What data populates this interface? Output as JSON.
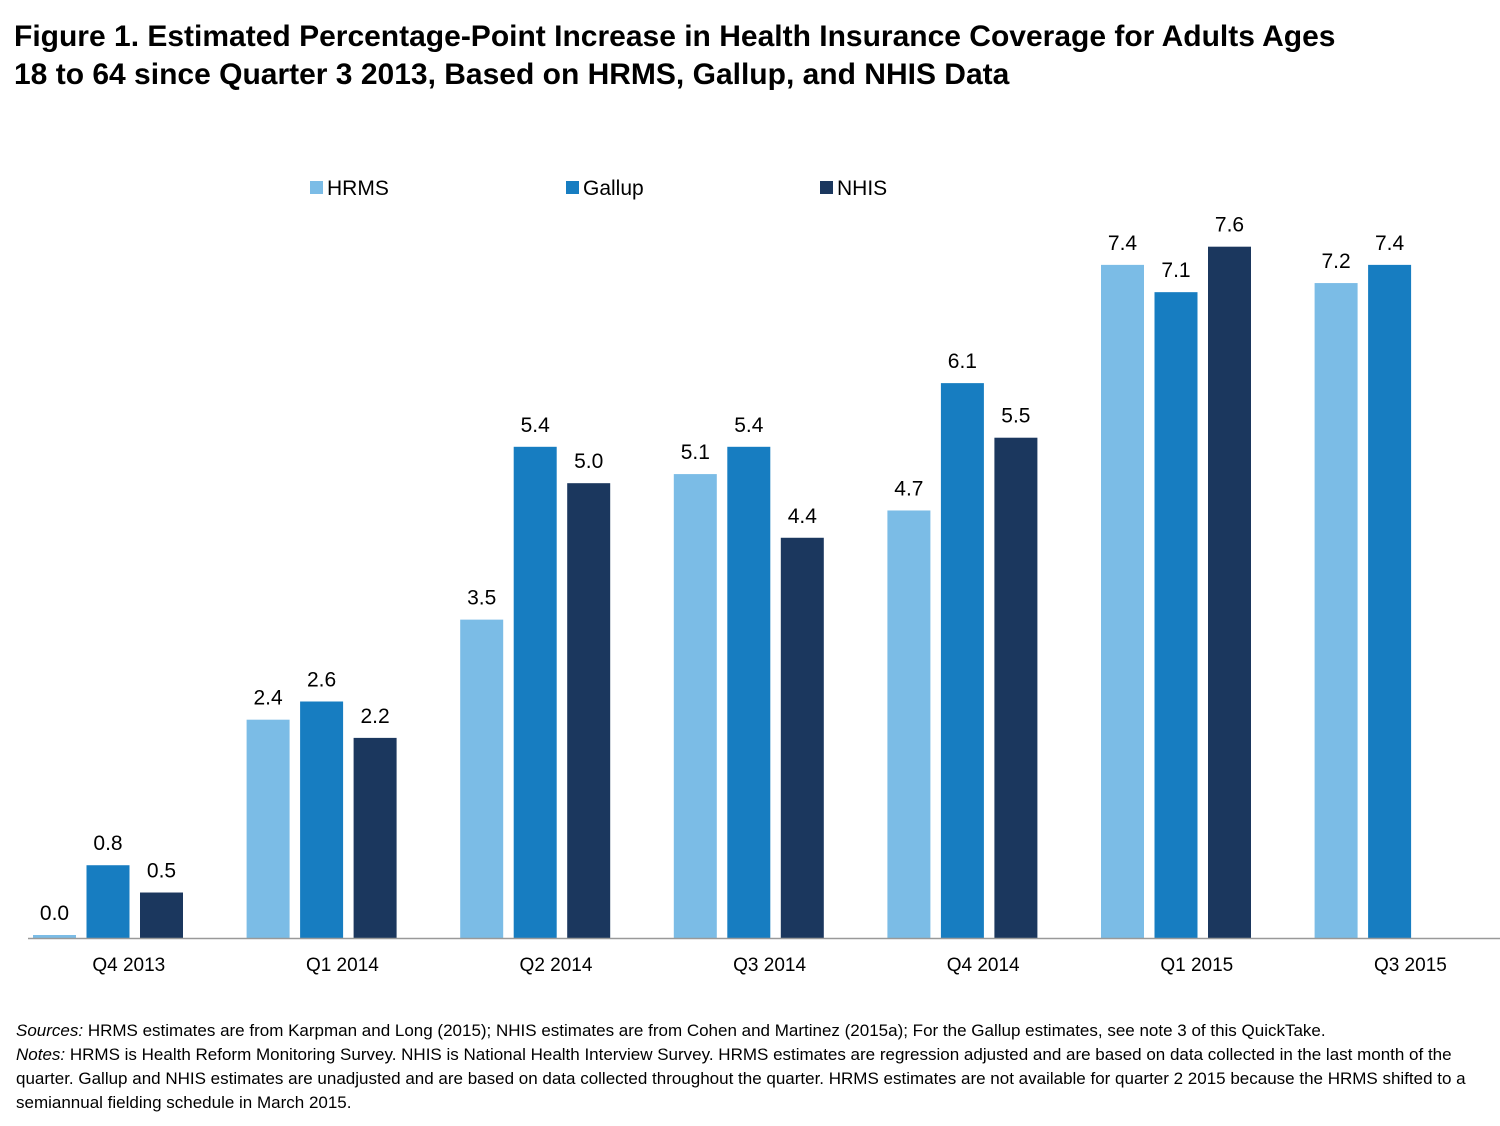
{
  "title": {
    "line1": "Figure 1. Estimated Percentage-Point Increase in Health Insurance Coverage for Adults Ages",
    "line2": "18 to 64 since Quarter 3 2013, Based on HRMS, Gallup, and NHIS Data"
  },
  "colors": {
    "HRMS": "#7bbce6",
    "Gallup": "#177dc1",
    "NHIS": "#1b375e",
    "axis": "#999999"
  },
  "chart_data": {
    "type": "bar",
    "title": "Figure 1. Estimated Percentage-Point Increase in Health Insurance Coverage for Adults Ages 18 to 64 since Quarter 3 2013, Based on HRMS, Gallup, and NHIS Data",
    "xlabel": "",
    "ylabel": "",
    "ylim": [
      0,
      8
    ],
    "grid": false,
    "legend_position": "top-center",
    "categories": [
      "Q4 2013",
      "Q1 2014",
      "Q2 2014",
      "Q3 2014",
      "Q4 2014",
      "Q1 2015",
      "Q3 2015"
    ],
    "series": [
      {
        "name": "HRMS",
        "values": [
          0.0,
          2.4,
          3.5,
          5.1,
          4.7,
          7.4,
          7.2
        ]
      },
      {
        "name": "Gallup",
        "values": [
          0.8,
          2.6,
          5.4,
          5.4,
          6.1,
          7.1,
          7.4
        ]
      },
      {
        "name": "NHIS",
        "values": [
          0.5,
          2.2,
          5.0,
          4.4,
          5.5,
          7.6,
          null
        ]
      }
    ],
    "data_labels": {
      "HRMS": [
        "0.0",
        "2.4",
        "3.5",
        "5.1",
        "4.7",
        "7.4",
        "7.2"
      ],
      "Gallup": [
        "0.8",
        "2.6",
        "5.4",
        "5.4",
        "6.1",
        "7.1",
        "7.4"
      ],
      "NHIS": [
        "0.5",
        "2.2",
        "5.0",
        "4.4",
        "5.5",
        "7.6",
        null
      ]
    }
  },
  "notes": {
    "sources_label": "Sources:",
    "sources_text": " HRMS estimates are from Karpman and Long (2015); NHIS estimates are from Cohen and Martinez (2015a); For the Gallup estimates, see note 3 of this QuickTake.",
    "notes_label": "Notes:",
    "notes_text": " HRMS is Health Reform Monitoring Survey. NHIS is National Health Interview Survey. HRMS estimates are regression adjusted and are based on data collected in the last month of the quarter. Gallup and NHIS estimates are unadjusted and are based on data collected throughout the quarter. HRMS estimates are not available for quarter 2 2015 because the HRMS shifted to a semiannual fielding schedule in March 2015."
  }
}
